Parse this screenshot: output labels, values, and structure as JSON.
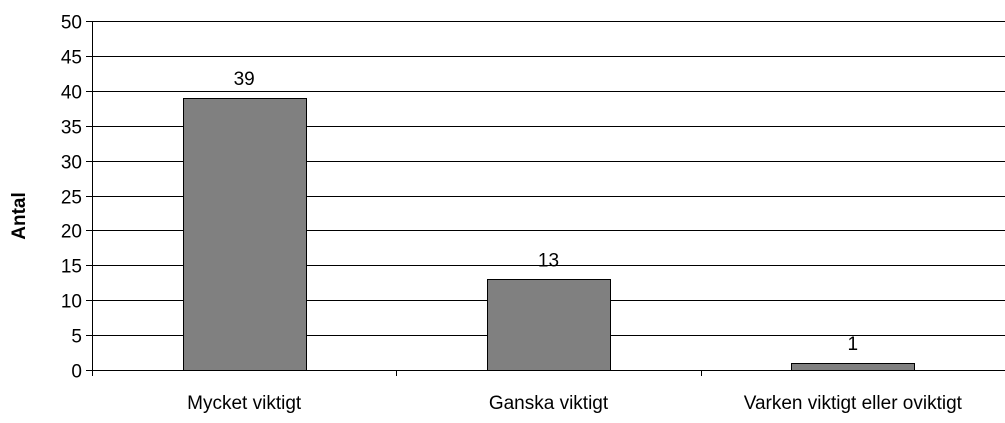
{
  "chart_data": {
    "type": "bar",
    "title": "",
    "xlabel": "",
    "ylabel": "Antal",
    "categories": [
      "Mycket viktigt",
      "Ganska viktigt",
      "Varken viktigt eller oviktigt"
    ],
    "values": [
      39,
      13,
      1
    ],
    "data_labels": [
      "39",
      "13",
      "1"
    ],
    "ylim": [
      0,
      50
    ],
    "yticks": [
      0,
      5,
      10,
      15,
      20,
      25,
      30,
      35,
      40,
      45,
      50
    ],
    "grid": "horizontal",
    "legend": "none",
    "colors": {
      "bar_fill": "#808080",
      "bar_stroke": "#000000",
      "gridline": "#000000",
      "axis": "#000000"
    }
  }
}
